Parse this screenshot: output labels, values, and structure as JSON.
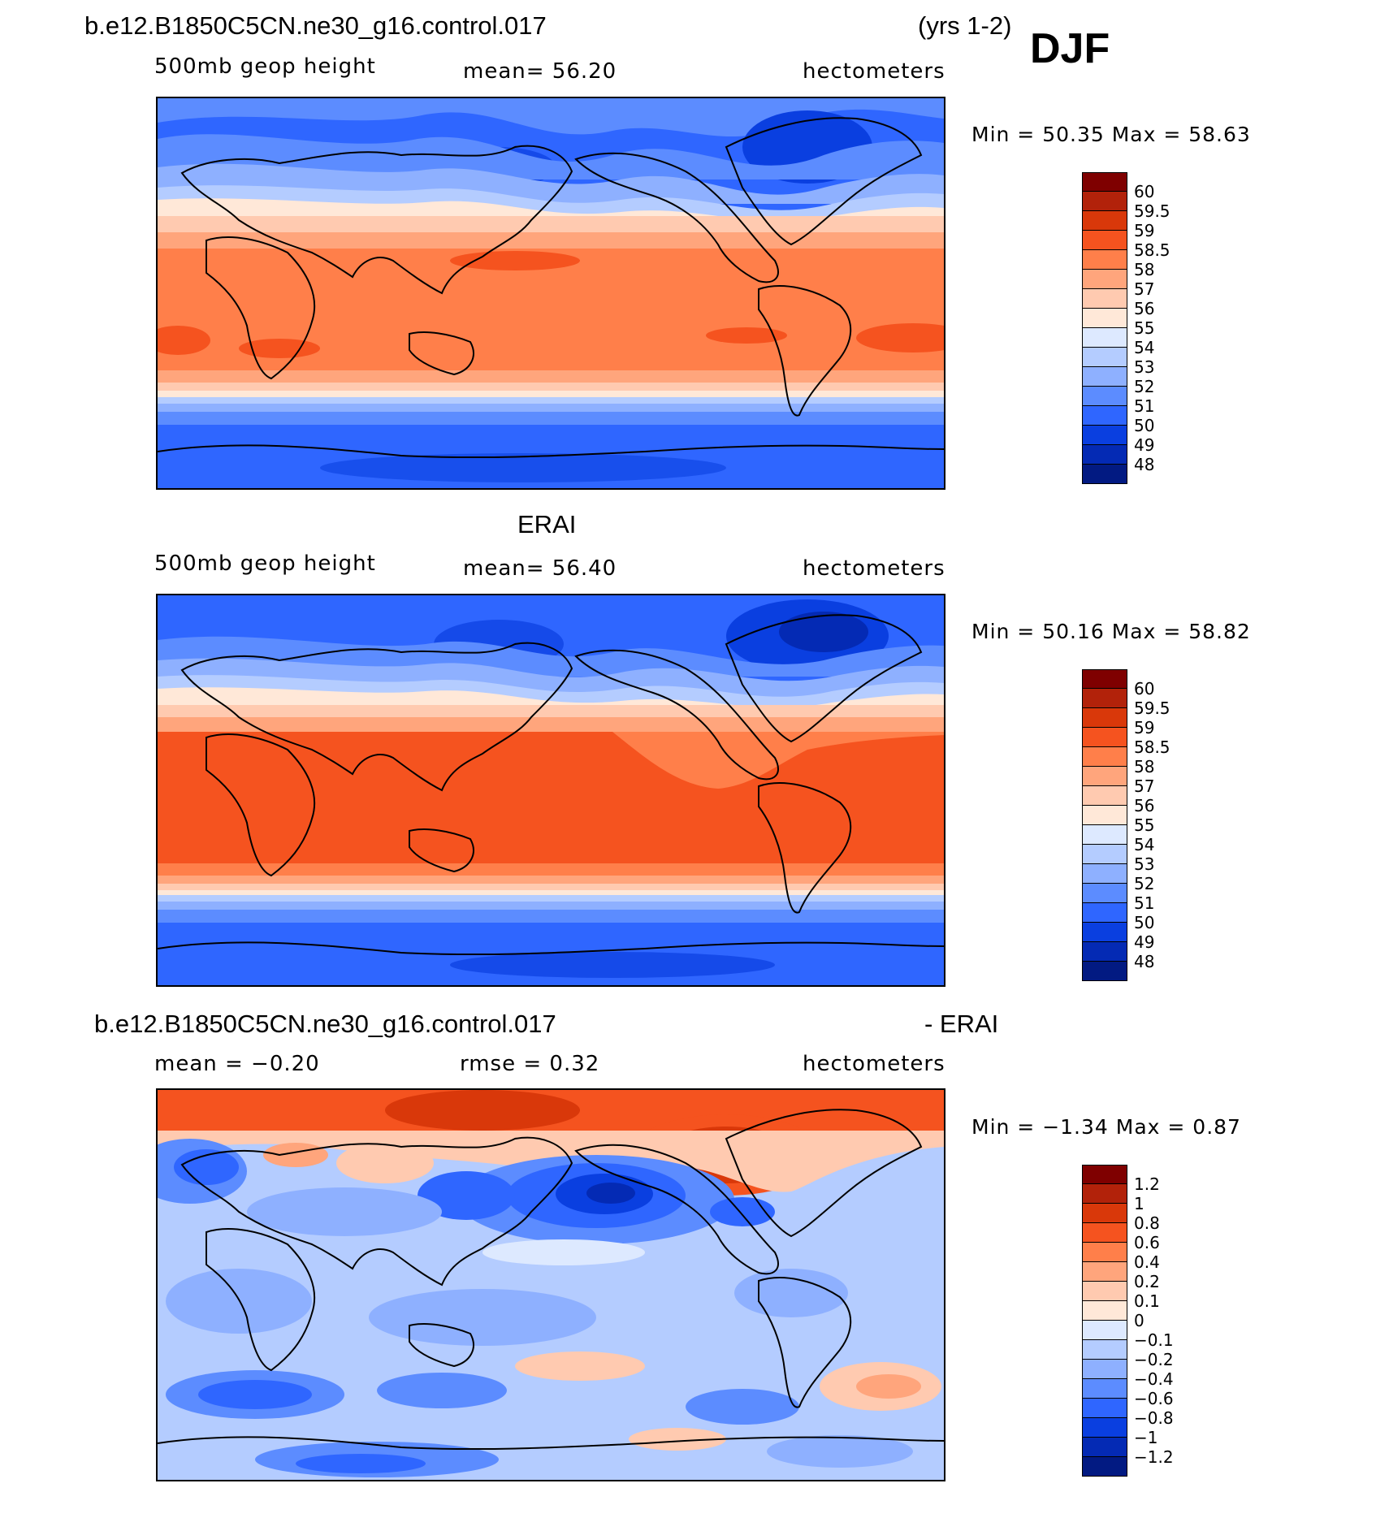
{
  "header": {
    "case_name": "b.e12.B1850C5CN.ne30_g16.control.017",
    "years": "(yrs 1-2)",
    "season": "DJF"
  },
  "panels": [
    {
      "id": "model",
      "title": "",
      "left_label": "500mb geop height",
      "center_label": "mean=   56.20",
      "units": "hectometers",
      "minmax": "Min =   50.35  Max =   58.63",
      "legend_levels": [
        "60",
        "59.5",
        "59",
        "58.5",
        "58",
        "57",
        "56",
        "55",
        "54",
        "53",
        "52",
        "51",
        "50",
        "49",
        "48"
      ],
      "legend_colors": [
        "#7f0000",
        "#b2220a",
        "#d9380a",
        "#f5531f",
        "#ff7f4a",
        "#ffa57c",
        "#ffcab0",
        "#ffe8d8",
        "#dde9ff",
        "#b4ccff",
        "#8eb0ff",
        "#5c8cff",
        "#2f66ff",
        "#0a3fe0",
        "#042ab4",
        "#021a82"
      ]
    },
    {
      "id": "obs",
      "title": "ERAI",
      "left_label": "500mb geop height",
      "center_label": "mean=   56.40",
      "units": "hectometers",
      "minmax": "Min =   50.16  Max =   58.82",
      "legend_levels": [
        "60",
        "59.5",
        "59",
        "58.5",
        "58",
        "57",
        "56",
        "55",
        "54",
        "53",
        "52",
        "51",
        "50",
        "49",
        "48"
      ],
      "legend_colors": [
        "#7f0000",
        "#b2220a",
        "#d9380a",
        "#f5531f",
        "#ff7f4a",
        "#ffa57c",
        "#ffcab0",
        "#ffe8d8",
        "#dde9ff",
        "#b4ccff",
        "#8eb0ff",
        "#5c8cff",
        "#2f66ff",
        "#0a3fe0",
        "#042ab4",
        "#021a82"
      ]
    },
    {
      "id": "diff",
      "title": "b.e12.B1850C5CN.ne30_g16.control.017",
      "title_right": "- ERAI",
      "left_label": "mean =   −0.20",
      "center_label": "rmse =    0.32",
      "units": "hectometers",
      "minmax": "Min =   −1.34  Max =    0.87",
      "legend_levels": [
        "1.2",
        "1",
        "0.8",
        "0.6",
        "0.4",
        "0.2",
        "0.1",
        "0",
        "−0.1",
        "−0.2",
        "−0.4",
        "−0.6",
        "−0.8",
        "−1",
        "−1.2"
      ],
      "legend_colors": [
        "#7f0000",
        "#b2220a",
        "#d9380a",
        "#f5531f",
        "#ff7f4a",
        "#ffa57c",
        "#ffcab0",
        "#ffe8d8",
        "#dde9ff",
        "#b4ccff",
        "#8eb0ff",
        "#5c8cff",
        "#2f66ff",
        "#0a3fe0",
        "#042ab4",
        "#021a82"
      ]
    }
  ]
}
